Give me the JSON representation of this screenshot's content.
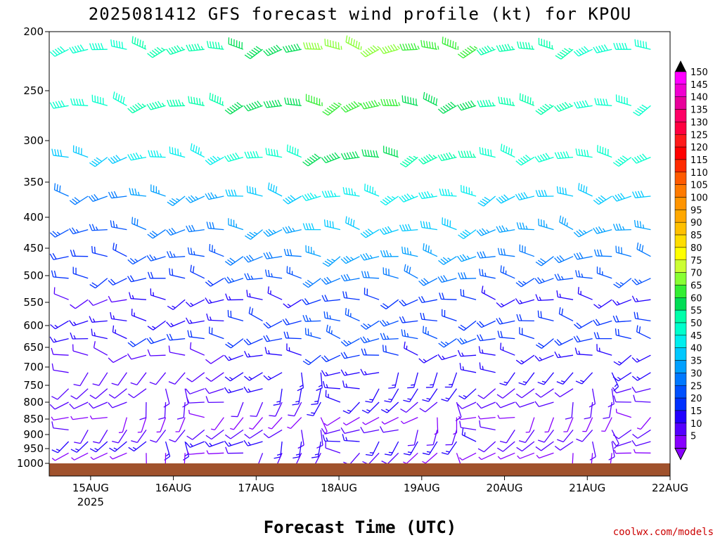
{
  "chart_data": {
    "type": "wind_barb_timeseries",
    "title": "2025081412 GFS forecast wind profile (kt) for KPOU",
    "xlabel": "Forecast Time (UTC)",
    "credit": "coolwx.com/models",
    "y_axis": {
      "label": "",
      "scale": "pressure (inverted, log-like)",
      "range_hpa": [
        1000,
        200
      ],
      "ticks": [
        "200",
        "250",
        "300",
        "350",
        "400",
        "450",
        "500",
        "550",
        "600",
        "650",
        "700",
        "750",
        "800",
        "850",
        "900",
        "950",
        "1000"
      ]
    },
    "x_axis": {
      "range_days": [
        "2025-08-14 12Z",
        "2025-08-22 00Z"
      ],
      "ticks": [
        "15AUG",
        "16AUG",
        "17AUG",
        "18AUG",
        "19AUG",
        "20AUG",
        "21AUG",
        "22AUG"
      ],
      "year_label": "2025"
    },
    "colorbar": {
      "unit": "kt",
      "labels": [
        "150",
        "145",
        "140",
        "135",
        "130",
        "125",
        "120",
        "115",
        "110",
        "105",
        "100",
        "95",
        "90",
        "85",
        "80",
        "75",
        "70",
        "65",
        "60",
        "55",
        "50",
        "45",
        "40",
        "35",
        "30",
        "25",
        "20",
        "15",
        "10",
        "5"
      ],
      "colors": [
        "#ff00ff",
        "#f000d0",
        "#e8009a",
        "#ff0066",
        "#ff0040",
        "#ff1a1a",
        "#ff0000",
        "#ff2a00",
        "#ff5a00",
        "#ff7a00",
        "#ff9400",
        "#ffa800",
        "#ffc000",
        "#ffdd00",
        "#ffff00",
        "#ccff33",
        "#88ff33",
        "#33ee33",
        "#00dd55",
        "#00ffaa",
        "#00ffcc",
        "#00eeee",
        "#00c8ff",
        "#00a0ff",
        "#0078ff",
        "#0050ff",
        "#0030ff",
        "#2200ff",
        "#5500ff",
        "#8800ff"
      ]
    },
    "ground_color": "#a0522d",
    "levels_hpa": [
      215,
      265,
      320,
      370,
      420,
      465,
      505,
      545,
      590,
      630,
      670,
      715,
      760,
      800,
      845,
      885,
      925,
      965
    ],
    "wind_summary_by_level_kt": [
      {
        "p": 215,
        "speed": [
          55,
          60,
          65,
          75,
          70,
          60,
          55
        ]
      },
      {
        "p": 265,
        "speed": [
          50,
          55,
          60,
          65,
          60,
          55,
          50
        ]
      },
      {
        "p": 320,
        "speed": [
          35,
          40,
          45,
          55,
          50,
          45,
          45
        ]
      },
      {
        "p": 370,
        "speed": [
          30,
          35,
          40,
          45,
          45,
          40,
          40
        ]
      },
      {
        "p": 420,
        "speed": [
          25,
          30,
          35,
          40,
          40,
          35,
          35
        ]
      },
      {
        "p": 465,
        "speed": [
          20,
          25,
          30,
          35,
          35,
          30,
          30
        ]
      },
      {
        "p": 505,
        "speed": [
          20,
          20,
          25,
          30,
          30,
          25,
          25
        ]
      },
      {
        "p": 545,
        "speed": [
          15,
          20,
          20,
          25,
          25,
          20,
          20
        ]
      },
      {
        "p": 590,
        "speed": [
          15,
          15,
          20,
          25,
          20,
          20,
          20
        ]
      },
      {
        "p": 630,
        "speed": [
          10,
          15,
          15,
          20,
          20,
          15,
          15
        ]
      },
      {
        "p": 670,
        "speed": [
          10,
          10,
          15,
          20,
          15,
          15,
          15
        ]
      },
      {
        "p": 715,
        "speed": [
          10,
          10,
          15,
          15,
          15,
          15,
          15
        ]
      },
      {
        "p": 760,
        "speed": [
          10,
          10,
          15,
          15,
          15,
          10,
          10
        ]
      },
      {
        "p": 800,
        "speed": [
          10,
          10,
          10,
          15,
          10,
          10,
          10
        ]
      },
      {
        "p": 845,
        "speed": [
          10,
          10,
          10,
          10,
          10,
          10,
          10
        ]
      },
      {
        "p": 885,
        "speed": [
          10,
          10,
          10,
          10,
          10,
          10,
          10
        ]
      },
      {
        "p": 925,
        "speed": [
          10,
          10,
          10,
          10,
          10,
          5,
          5
        ]
      },
      {
        "p": 965,
        "speed": [
          5,
          5,
          10,
          10,
          5,
          5,
          5
        ]
      }
    ]
  }
}
